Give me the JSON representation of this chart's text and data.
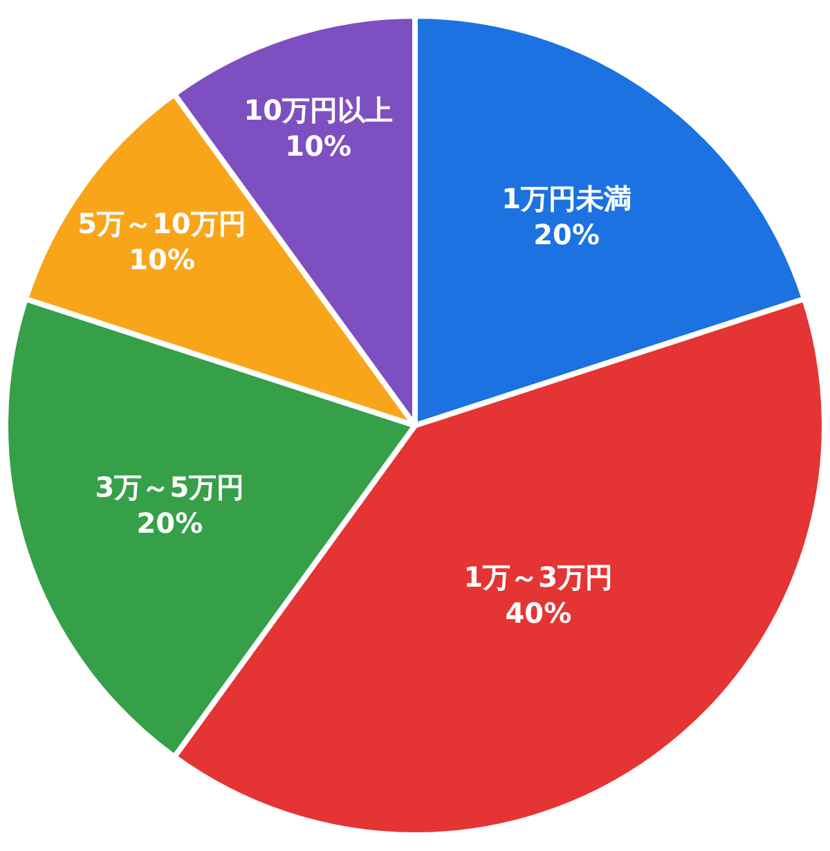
{
  "chart_data": {
    "type": "pie",
    "categories": [
      "1万円未満",
      "1万～3万円",
      "3万～5万円",
      "5万～10万円",
      "10万円以上"
    ],
    "values": [
      20,
      40,
      20,
      10,
      10
    ],
    "value_labels": [
      "20%",
      "40%",
      "20%",
      "10%",
      "10%"
    ],
    "colors": [
      "#1b72e0",
      "#e53434",
      "#35a047",
      "#f9a51a",
      "#7e4fc0"
    ],
    "legend": false
  }
}
